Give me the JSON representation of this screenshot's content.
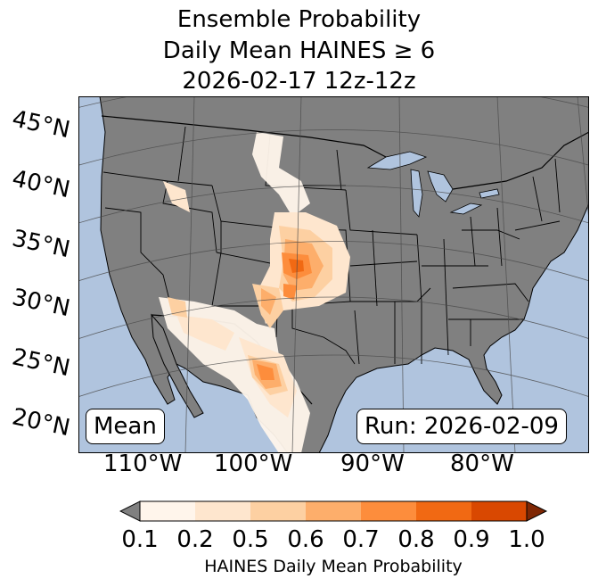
{
  "title": {
    "line1": "Ensemble Probability",
    "line2": "Daily Mean HAINES ≥ 6",
    "line3": "2026-02-17 12z-12z"
  },
  "map": {
    "projection": "lambert-conformal",
    "region": "CONUS",
    "colors": {
      "ocean": "#b0c4de",
      "land": "#808080",
      "lakes": "#b0c4de",
      "borders": "#000000",
      "gridlines": "#4a4a4a"
    },
    "lat_labels": [
      "45°N",
      "40°N",
      "35°N",
      "30°N",
      "25°N",
      "20°N"
    ],
    "lon_labels": [
      "110°W",
      "100°W",
      "90°W",
      "80°W"
    ]
  },
  "annotations": {
    "left": "Mean",
    "right": "Run: 2026-02-09"
  },
  "colorbar": {
    "ticks": [
      "0.1",
      "0.2",
      "0.5",
      "0.6",
      "0.7",
      "0.8",
      "0.9",
      "1.0"
    ],
    "colors": [
      "#fff5eb",
      "#fee6ce",
      "#fdd0a2",
      "#fdae6b",
      "#fd8d3c",
      "#f16913",
      "#d94801",
      "#a63603"
    ],
    "under_color": "#808080",
    "over_color": "#7f2704",
    "label": "HAINES Daily Mean Probability"
  }
}
